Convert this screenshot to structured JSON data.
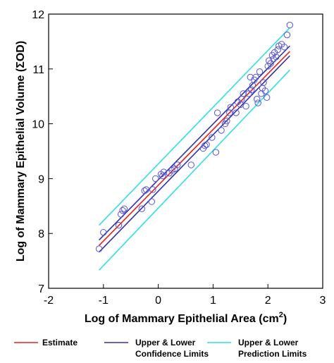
{
  "chart_data": {
    "type": "scatter",
    "title": "",
    "xlabel": "Log of Mammary Epithelial Area (cm",
    "xlabel_sup": "2",
    "xlabel_close": ")",
    "ylabel": "Log of Mammary Epithelial Volume (ΣOD)",
    "xlim": [
      -2,
      3
    ],
    "ylim": [
      7,
      12
    ],
    "xticks": [
      -2,
      -1,
      0,
      1,
      2,
      3
    ],
    "yticks": [
      7,
      8,
      9,
      10,
      11,
      12
    ],
    "grid": false,
    "legend_position": "bottom",
    "colors": {
      "points": "#5555dd",
      "estimate": "#e8201a",
      "confidence": "#3030aa",
      "prediction": "#2ee0e6"
    },
    "points": {
      "x": [
        -1.08,
        -1.0,
        -0.72,
        -0.68,
        -0.65,
        -0.62,
        -0.3,
        -0.25,
        -0.22,
        -0.12,
        -0.1,
        -0.05,
        0.05,
        0.08,
        0.1,
        0.2,
        0.25,
        0.3,
        0.35,
        0.6,
        0.82,
        0.85,
        0.88,
        0.98,
        1.05,
        1.08,
        1.15,
        1.22,
        1.25,
        1.3,
        1.32,
        1.42,
        1.45,
        1.5,
        1.52,
        1.55,
        1.6,
        1.65,
        1.68,
        1.7,
        1.72,
        1.75,
        1.78,
        1.8,
        1.82,
        1.85,
        1.88,
        1.9,
        1.92,
        1.95,
        1.98,
        2.0,
        2.02,
        2.05,
        2.08,
        2.1,
        2.12,
        2.15,
        2.18,
        2.2,
        2.25,
        2.3,
        2.35,
        2.4
      ],
      "y": [
        7.72,
        8.02,
        8.15,
        8.35,
        8.42,
        8.45,
        8.45,
        8.78,
        8.8,
        8.58,
        8.8,
        9.0,
        9.08,
        9.05,
        9.12,
        9.1,
        9.15,
        9.18,
        9.25,
        9.25,
        9.55,
        9.6,
        9.62,
        9.75,
        9.48,
        10.2,
        9.88,
        10.0,
        10.05,
        10.2,
        10.3,
        10.2,
        10.4,
        10.35,
        10.45,
        10.55,
        10.32,
        10.55,
        10.85,
        10.62,
        10.7,
        10.8,
        10.85,
        10.45,
        10.38,
        10.95,
        10.55,
        10.65,
        10.75,
        10.6,
        10.48,
        11.05,
        11.15,
        11.1,
        11.25,
        11.18,
        11.3,
        11.22,
        11.35,
        11.42,
        11.45,
        11.4,
        11.62,
        11.8
      ]
    },
    "series": [
      {
        "name": "Estimate",
        "key": "estimate",
        "x": [
          -1.08,
          2.4
        ],
        "y": [
          7.78,
          11.32
        ]
      },
      {
        "name": "Upper & Lower Confidence Limits",
        "key": "confidence",
        "x": [
          -1.08,
          2.4
        ],
        "y": [
          7.88,
          11.42
        ]
      },
      {
        "name": "Upper & Lower Confidence Limits",
        "key": "confidence",
        "x": [
          -1.08,
          2.4
        ],
        "y": [
          7.66,
          11.24
        ]
      },
      {
        "name": "Upper & Lower Prediction Limits",
        "key": "prediction",
        "x": [
          -1.08,
          2.4
        ],
        "y": [
          8.15,
          11.75
        ]
      },
      {
        "name": "Upper & Lower Prediction Limits",
        "key": "prediction",
        "x": [
          -1.08,
          2.4
        ],
        "y": [
          7.33,
          10.98
        ]
      }
    ],
    "legend": [
      {
        "key": "estimate",
        "lines": [
          "Estimate"
        ]
      },
      {
        "key": "confidence",
        "lines": [
          "Upper & Lower",
          "Confidence Limits"
        ]
      },
      {
        "key": "prediction",
        "lines": [
          "Upper & Lower",
          "Prediction Limits"
        ]
      }
    ]
  }
}
